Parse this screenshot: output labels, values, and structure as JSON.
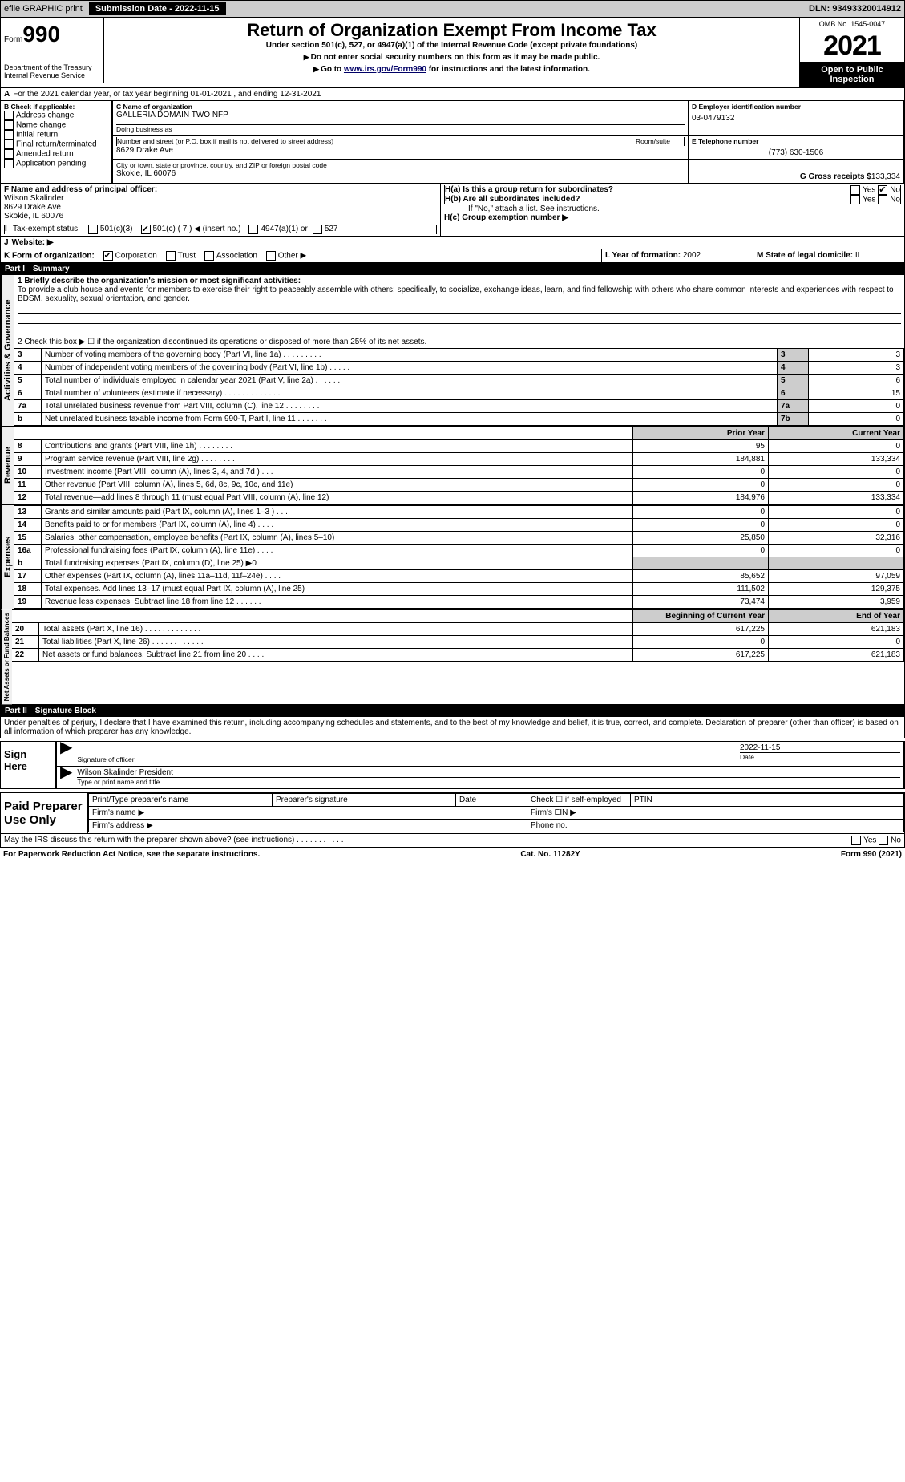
{
  "topbar": {
    "efile": "efile GRAPHIC print",
    "btn": "Submission Date - 2022-11-15",
    "dln": "DLN: 93493320014912"
  },
  "header": {
    "form_prefix": "Form",
    "form_num": "990",
    "title": "Return of Organization Exempt From Income Tax",
    "subtitle": "Under section 501(c), 527, or 4947(a)(1) of the Internal Revenue Code (except private foundations)",
    "note1": "Do not enter social security numbers on this form as it may be made public.",
    "note2": "Go to ",
    "link": "www.irs.gov/Form990",
    "note3": " for instructions and the latest information.",
    "dept": "Department of the Treasury\nInternal Revenue Service",
    "omb": "OMB No. 1545-0047",
    "year": "2021",
    "otp": "Open to Public Inspection"
  },
  "periodA": "For the 2021 calendar year, or tax year beginning 01-01-2021    , and ending 12-31-2021",
  "boxB": {
    "title": "B Check if applicable:",
    "items": [
      "Address change",
      "Name change",
      "Initial return",
      "Final return/terminated",
      "Amended return",
      "Application pending"
    ]
  },
  "boxC": {
    "label": "C Name of organization",
    "name": "GALLERIA DOMAIN TWO NFP",
    "dba": "Doing business as",
    "addr_label": "Number and street (or P.O. box if mail is not delivered to street address)",
    "room": "Room/suite",
    "addr": "8629 Drake Ave",
    "city_label": "City or town, state or province, country, and ZIP or foreign postal code",
    "city": "Skokie, IL  60076"
  },
  "boxD": {
    "label": "D Employer identification number",
    "val": "03-0479132"
  },
  "boxE": {
    "label": "E Telephone number",
    "val": "(773) 630-1506"
  },
  "boxG": {
    "label": "G Gross receipts $",
    "val": "133,334"
  },
  "boxF": {
    "label": "F  Name and address of principal officer:",
    "name": "Wilson Skalinder",
    "addr1": "8629 Drake Ave",
    "addr2": "Skokie, IL  60076"
  },
  "boxH": {
    "a": "H(a)  Is this a group return for subordinates?",
    "b": "H(b)  Are all subordinates included?",
    "bnote": "If \"No,\" attach a list. See instructions.",
    "c": "H(c)  Group exemption number ▶"
  },
  "boxI": {
    "label": "Tax-exempt status:",
    "opt1": "501(c)(3)",
    "opt2": "501(c) ( 7 ) ◀ (insert no.)",
    "opt3": "4947(a)(1) or",
    "opt4": "527"
  },
  "boxJ": "Website: ▶",
  "boxK": "K Form of organization:",
  "K_opts": [
    "Corporation",
    "Trust",
    "Association",
    "Other ▶"
  ],
  "boxL": {
    "label": "L Year of formation: ",
    "val": "2002"
  },
  "boxM": {
    "label": "M State of legal domicile: ",
    "val": "IL"
  },
  "part1": {
    "num": "Part I",
    "title": "Summary"
  },
  "p1_q1": "1  Briefly describe the organization's mission or most significant activities:",
  "mission": "To provide a club house and events for members to exercise their right to peaceably assemble with others; specifically, to socialize, exchange ideas, learn, and find fellowship with others who share common interests and experiences with respect to BDSM, sexuality, sexual orientation, and gender.",
  "p1_q2": "2  Check this box ▶ ☐  if the organization discontinued its operations or disposed of more than 25% of its net assets.",
  "gov_rows": [
    {
      "n": "3",
      "t": "Number of voting members of the governing body (Part VI, line 1a)  .    .    .    .    .    .    .    .    .",
      "box": "3",
      "v": "3"
    },
    {
      "n": "4",
      "t": "Number of independent voting members of the governing body (Part VI, line 1b)  .    .    .    .    .",
      "box": "4",
      "v": "3"
    },
    {
      "n": "5",
      "t": "Total number of individuals employed in calendar year 2021 (Part V, line 2a)  .    .    .    .    .    .",
      "box": "5",
      "v": "6"
    },
    {
      "n": "6",
      "t": "Total number of volunteers (estimate if necessary)    .    .    .    .    .    .    .    .    .    .    .    .    .",
      "box": "6",
      "v": "15"
    },
    {
      "n": "7a",
      "t": "Total unrelated business revenue from Part VIII, column (C), line 12   .    .    .    .    .    .    .    .",
      "box": "7a",
      "v": "0"
    },
    {
      "n": "b",
      "t": "Net unrelated business taxable income from Form 990-T, Part I, line 11  .    .    .    .    .    .    .",
      "box": "7b",
      "v": "0"
    }
  ],
  "col_headers": {
    "prior": "Prior Year",
    "current": "Current Year"
  },
  "revenue": [
    {
      "n": "8",
      "t": "Contributions and grants (Part VIII, line 1h)   .    .    .    .    .    .    .    .",
      "p": "95",
      "c": "0"
    },
    {
      "n": "9",
      "t": "Program service revenue (Part VIII, line 2g)   .    .    .    .    .    .    .    .",
      "p": "184,881",
      "c": "133,334"
    },
    {
      "n": "10",
      "t": "Investment income (Part VIII, column (A), lines 3, 4, and 7d )   .    .    .",
      "p": "0",
      "c": "0"
    },
    {
      "n": "11",
      "t": "Other revenue (Part VIII, column (A), lines 5, 6d, 8c, 9c, 10c, and 11e)",
      "p": "0",
      "c": "0"
    },
    {
      "n": "12",
      "t": "Total revenue—add lines 8 through 11 (must equal Part VIII, column (A), line 12)",
      "p": "184,976",
      "c": "133,334"
    }
  ],
  "expenses": [
    {
      "n": "13",
      "t": "Grants and similar amounts paid (Part IX, column (A), lines 1–3 )  .    .    .",
      "p": "0",
      "c": "0"
    },
    {
      "n": "14",
      "t": "Benefits paid to or for members (Part IX, column (A), line 4)  .    .    .    .",
      "p": "0",
      "c": "0"
    },
    {
      "n": "15",
      "t": "Salaries, other compensation, employee benefits (Part IX, column (A), lines 5–10)",
      "p": "25,850",
      "c": "32,316"
    },
    {
      "n": "16a",
      "t": "Professional fundraising fees (Part IX, column (A), line 11e)  .    .    .    .",
      "p": "0",
      "c": "0"
    },
    {
      "n": "b",
      "t": "Total fundraising expenses (Part IX, column (D), line 25) ▶0",
      "p": "",
      "c": "",
      "gray": true
    },
    {
      "n": "17",
      "t": "Other expenses (Part IX, column (A), lines 11a–11d, 11f–24e)   .    .    .    .",
      "p": "85,652",
      "c": "97,059"
    },
    {
      "n": "18",
      "t": "Total expenses. Add lines 13–17 (must equal Part IX, column (A), line 25)",
      "p": "111,502",
      "c": "129,375"
    },
    {
      "n": "19",
      "t": "Revenue less expenses. Subtract line 18 from line 12  .    .    .    .    .    .",
      "p": "73,474",
      "c": "3,959"
    }
  ],
  "net_headers": {
    "b": "Beginning of Current Year",
    "e": "End of Year"
  },
  "net": [
    {
      "n": "20",
      "t": "Total assets (Part X, line 16)  .    .    .    .    .    .    .    .    .    .    .    .    .",
      "p": "617,225",
      "c": "621,183"
    },
    {
      "n": "21",
      "t": "Total liabilities (Part X, line 26)  .    .    .    .    .    .    .    .    .    .    .    .",
      "p": "0",
      "c": "0"
    },
    {
      "n": "22",
      "t": "Net assets or fund balances. Subtract line 21 from line 20  .    .    .    .",
      "p": "617,225",
      "c": "621,183"
    }
  ],
  "part2": {
    "num": "Part II",
    "title": "Signature Block"
  },
  "perjury": "Under penalties of perjury, I declare that I have examined this return, including accompanying schedules and statements, and to the best of my knowledge and belief, it is true, correct, and complete. Declaration of preparer (other than officer) is based on all information of which preparer has any knowledge.",
  "sign": {
    "here": "Sign Here",
    "sigoff": "Signature of officer",
    "date": "Date",
    "sigdate": "2022-11-15",
    "name": "Wilson Skalinder  President",
    "typeprint": "Type or print name and title"
  },
  "prep": {
    "label": "Paid Preparer Use Only",
    "c1": "Print/Type preparer's name",
    "c2": "Preparer's signature",
    "c3": "Date",
    "c4": "Check ☐ if self-employed",
    "c5": "PTIN",
    "fn": "Firm's name  ▶",
    "fa": "Firm's address ▶",
    "fein": "Firm's EIN ▶",
    "phone": "Phone no."
  },
  "irs_discuss": "May the IRS discuss this return with the preparer shown above? (see instructions)   .    .    .    .    .    .    .    .    .    .    .",
  "footer": {
    "pra": "For Paperwork Reduction Act Notice, see the separate instructions.",
    "cat": "Cat. No. 11282Y",
    "form": "Form 990 (2021)"
  },
  "vtabs": {
    "gov": "Activities & Governance",
    "rev": "Revenue",
    "exp": "Expenses",
    "net": "Net Assets or Fund Balances"
  },
  "yesno": {
    "yes": "Yes",
    "no": "No"
  }
}
